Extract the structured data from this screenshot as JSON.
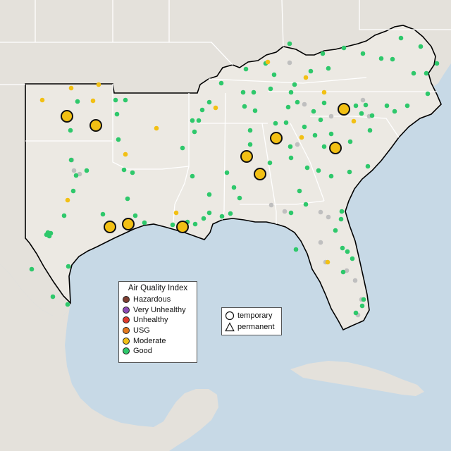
{
  "colors": {
    "water": "#c7d9e6",
    "land": "#ece9e3",
    "land_outside": "#e4e1db",
    "border": "#ffffff",
    "outline": "#000000",
    "Hazardous": "#7e3f32",
    "Very Unhealthy": "#8b4ab5",
    "Unhealthy": "#e03b2e",
    "USG": "#e57a1e",
    "Moderate": "#f2c014",
    "Good": "#2ec86b",
    "NoData": "#bfbfbf"
  },
  "legend": {
    "title": "Air Quality Index",
    "items": [
      "Hazardous",
      "Very Unhealthy",
      "Unhealthy",
      "USG",
      "Moderate",
      "Good"
    ]
  },
  "shape_legend": {
    "items": [
      {
        "shape": "circle",
        "label": "temporary"
      },
      {
        "shape": "triangle",
        "label": "permanent"
      }
    ]
  },
  "monitors": {
    "large_moderate": [
      [
        95,
        165
      ],
      [
        136,
        178
      ],
      [
        156,
        322
      ],
      [
        182,
        318
      ],
      [
        259,
        322
      ],
      [
        350,
        222
      ],
      [
        369,
        247
      ],
      [
        392,
        196
      ],
      [
        476,
        210
      ],
      [
        488,
        155
      ]
    ],
    "small_moderate": [
      [
        60,
        142
      ],
      [
        101,
        125
      ],
      [
        132,
        143
      ],
      [
        140,
        120
      ],
      [
        222,
        182
      ],
      [
        178,
        219
      ],
      [
        96,
        284
      ],
      [
        250,
        302
      ],
      [
        306,
        153
      ],
      [
        380,
        88
      ],
      [
        434,
        110
      ],
      [
        460,
        131
      ],
      [
        502,
        172
      ],
      [
        428,
        195
      ],
      [
        465,
        372
      ]
    ],
    "small_good": [
      [
        68,
        330
      ],
      [
        72,
        331
      ],
      [
        70,
        335
      ],
      [
        66,
        333
      ],
      [
        45,
        382
      ],
      [
        75,
        421
      ],
      [
        96,
        432
      ],
      [
        97,
        378
      ],
      [
        91,
        306
      ],
      [
        104,
        271
      ],
      [
        108,
        249
      ],
      [
        101,
        227
      ],
      [
        123,
        242
      ],
      [
        110,
        144
      ],
      [
        100,
        185
      ],
      [
        164,
        142
      ],
      [
        178,
        142
      ],
      [
        166,
        162
      ],
      [
        168,
        198
      ],
      [
        176,
        241
      ],
      [
        188,
        245
      ],
      [
        181,
        282
      ],
      [
        146,
        304
      ],
      [
        192,
        306
      ],
      [
        205,
        316
      ],
      [
        245,
        319
      ],
      [
        266,
        315
      ],
      [
        277,
        318
      ],
      [
        289,
        310
      ],
      [
        297,
        302
      ],
      [
        315,
        307
      ],
      [
        327,
        303
      ],
      [
        273,
        250
      ],
      [
        297,
        276
      ],
      [
        322,
        245
      ],
      [
        259,
        210
      ],
      [
        273,
        171
      ],
      [
        282,
        171
      ],
      [
        276,
        187
      ],
      [
        287,
        156
      ],
      [
        297,
        145
      ],
      [
        314,
        118
      ],
      [
        345,
        131
      ],
      [
        360,
        131
      ],
      [
        347,
        151
      ],
      [
        362,
        157
      ],
      [
        355,
        185
      ],
      [
        355,
        205
      ],
      [
        389,
        106
      ],
      [
        418,
        120
      ],
      [
        441,
        101
      ],
      [
        466,
        97
      ],
      [
        384,
        126
      ],
      [
        413,
        131
      ],
      [
        409,
        152
      ],
      [
        422,
        145
      ],
      [
        445,
        158
      ],
      [
        460,
        146
      ],
      [
        406,
        174
      ],
      [
        391,
        175
      ],
      [
        383,
        231
      ],
      [
        412,
        208
      ],
      [
        432,
        180
      ],
      [
        447,
        192
      ],
      [
        460,
        208
      ],
      [
        413,
        224
      ],
      [
        436,
        238
      ],
      [
        452,
        242
      ],
      [
        470,
        250
      ],
      [
        496,
        244
      ],
      [
        522,
        236
      ],
      [
        497,
        201
      ],
      [
        519,
        149
      ],
      [
        528,
        164
      ],
      [
        513,
        161
      ],
      [
        505,
        150
      ],
      [
        549,
        150
      ],
      [
        560,
        158
      ],
      [
        578,
        150
      ],
      [
        607,
        133
      ],
      [
        587,
        104
      ],
      [
        605,
        104
      ],
      [
        620,
        90
      ],
      [
        597,
        66
      ],
      [
        569,
        54
      ],
      [
        557,
        84
      ],
      [
        541,
        83
      ],
      [
        515,
        76
      ],
      [
        488,
        68
      ],
      [
        458,
        76
      ],
      [
        411,
        62
      ],
      [
        377,
        90
      ],
      [
        349,
        98
      ],
      [
        425,
        271
      ],
      [
        434,
        290
      ],
      [
        413,
        302
      ],
      [
        420,
        354
      ],
      [
        486,
        352
      ],
      [
        484,
        311
      ],
      [
        485,
        300
      ],
      [
        476,
        327
      ],
      [
        493,
        357
      ],
      [
        500,
        367
      ],
      [
        487,
        386
      ],
      [
        516,
        425
      ],
      [
        514,
        434
      ],
      [
        505,
        444
      ],
      [
        332,
        266
      ],
      [
        340,
        281
      ],
      [
        470,
        190
      ],
      [
        525,
        185
      ],
      [
        455,
        170
      ]
    ],
    "small_nodata": [
      [
        102,
        227
      ],
      [
        105,
        242
      ],
      [
        113,
        247
      ],
      [
        411,
        89
      ],
      [
        422,
        205
      ],
      [
        432,
        148
      ],
      [
        470,
        165
      ],
      [
        524,
        165
      ],
      [
        515,
        142
      ],
      [
        385,
        291
      ],
      [
        404,
        300
      ],
      [
        455,
        301
      ],
      [
        466,
        308
      ],
      [
        455,
        344
      ],
      [
        462,
        372
      ],
      [
        492,
        384
      ],
      [
        504,
        398
      ],
      [
        508,
        447
      ],
      [
        513,
        425
      ]
    ]
  }
}
